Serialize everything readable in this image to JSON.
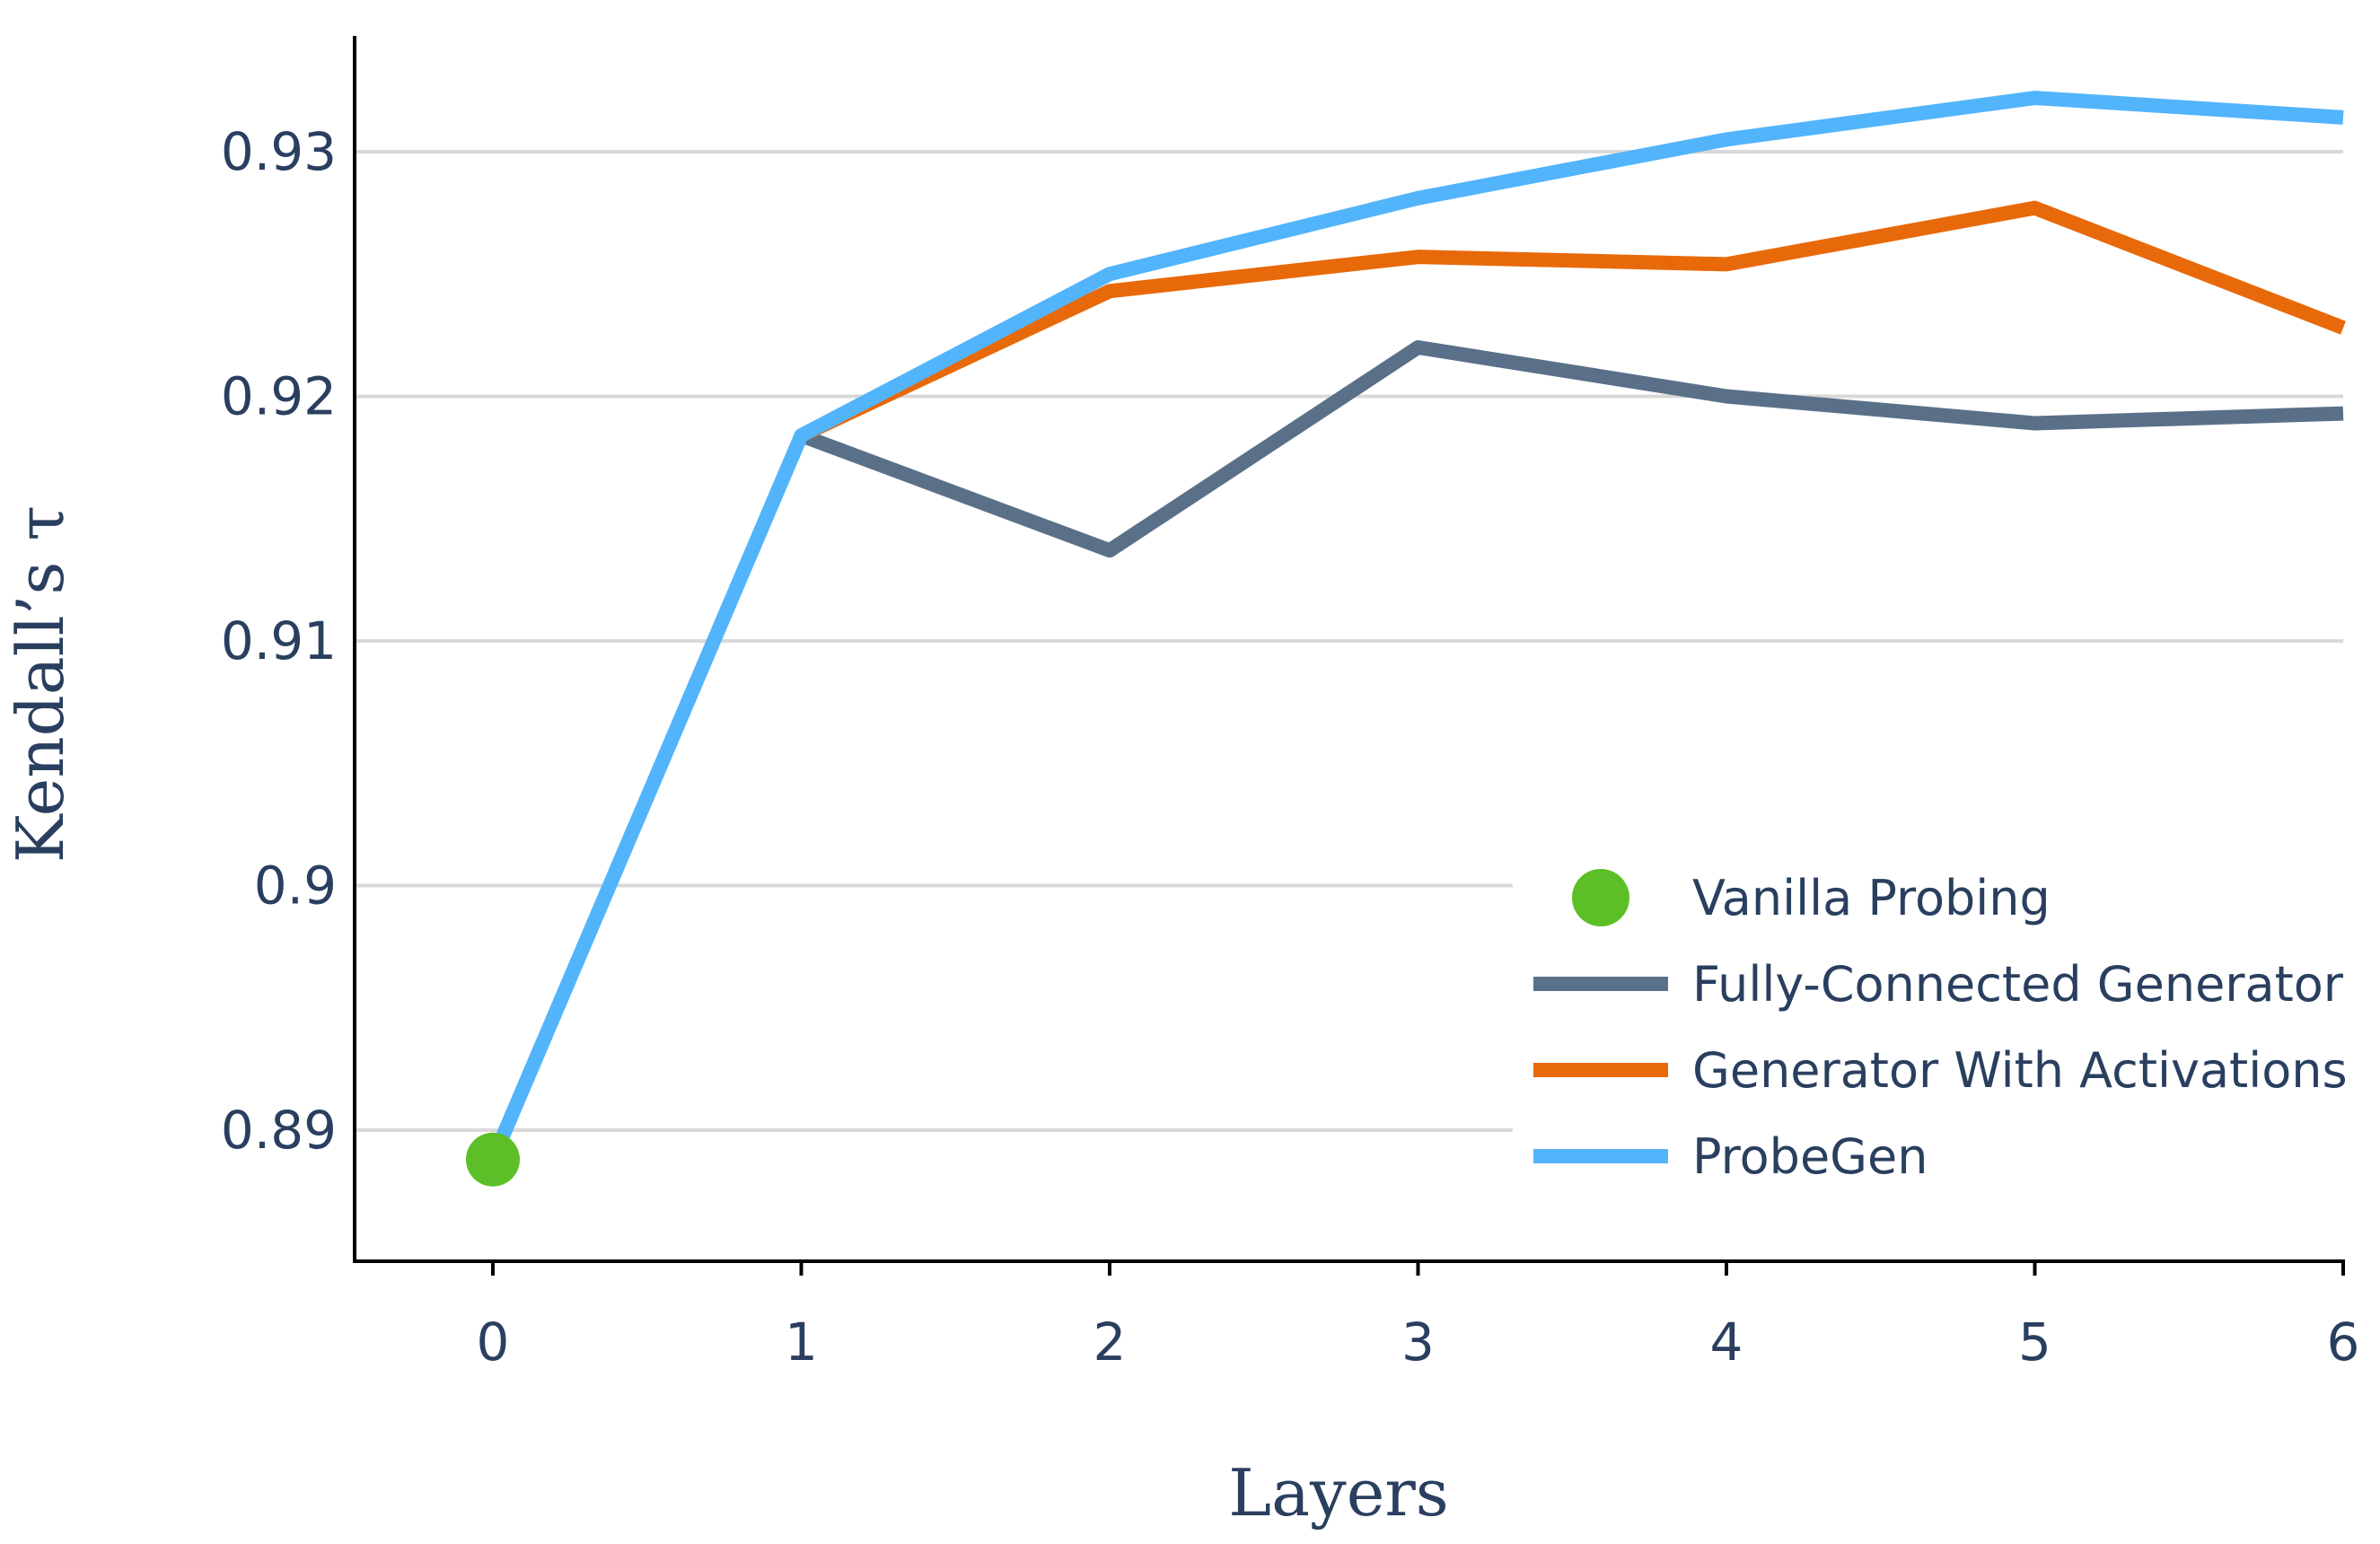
{
  "chart_data": {
    "type": "line",
    "xlabel": "Layers",
    "ylabel": "Kendall’s τ",
    "x": [
      0,
      1,
      2,
      3,
      4,
      5,
      6
    ],
    "xlim": [
      -0.45,
      6
    ],
    "ylim": [
      0.8853,
      0.9347
    ],
    "xticks": [
      "0",
      "1",
      "2",
      "3",
      "4",
      "5",
      "6"
    ],
    "yticks": [
      0.89,
      0.9,
      0.91,
      0.92,
      0.93
    ],
    "ytick_labels": [
      "0.89",
      "0.9",
      "0.91",
      "0.92",
      "0.93"
    ],
    "grid": "horizontal",
    "legend_position": "bottom-right",
    "series": [
      {
        "name": "Vanilla Probing",
        "kind": "marker",
        "color": "#5dbf27",
        "points": [
          [
            0,
            0.8888
          ]
        ]
      },
      {
        "name": "Fully-Connected Generator",
        "kind": "line",
        "color": "#5a7089",
        "points": [
          [
            1,
            0.9184
          ],
          [
            2,
            0.9137
          ],
          [
            3,
            0.922
          ],
          [
            4,
            0.92
          ],
          [
            5,
            0.9189
          ],
          [
            6,
            0.9193
          ]
        ]
      },
      {
        "name": "Generator With Activations",
        "kind": "line",
        "color": "#e8690a",
        "points": [
          [
            1,
            0.9184
          ],
          [
            2,
            0.9243
          ],
          [
            3,
            0.9257
          ],
          [
            4,
            0.9254
          ],
          [
            5,
            0.9277
          ],
          [
            6,
            0.9228
          ]
        ]
      },
      {
        "name": "ProbeGen",
        "kind": "line",
        "color": "#52b4fb",
        "points": [
          [
            0,
            0.8888
          ],
          [
            1,
            0.9184
          ],
          [
            2,
            0.925
          ],
          [
            3,
            0.9281
          ],
          [
            4,
            0.9305
          ],
          [
            5,
            0.9322
          ],
          [
            6,
            0.9314
          ]
        ]
      }
    ]
  }
}
